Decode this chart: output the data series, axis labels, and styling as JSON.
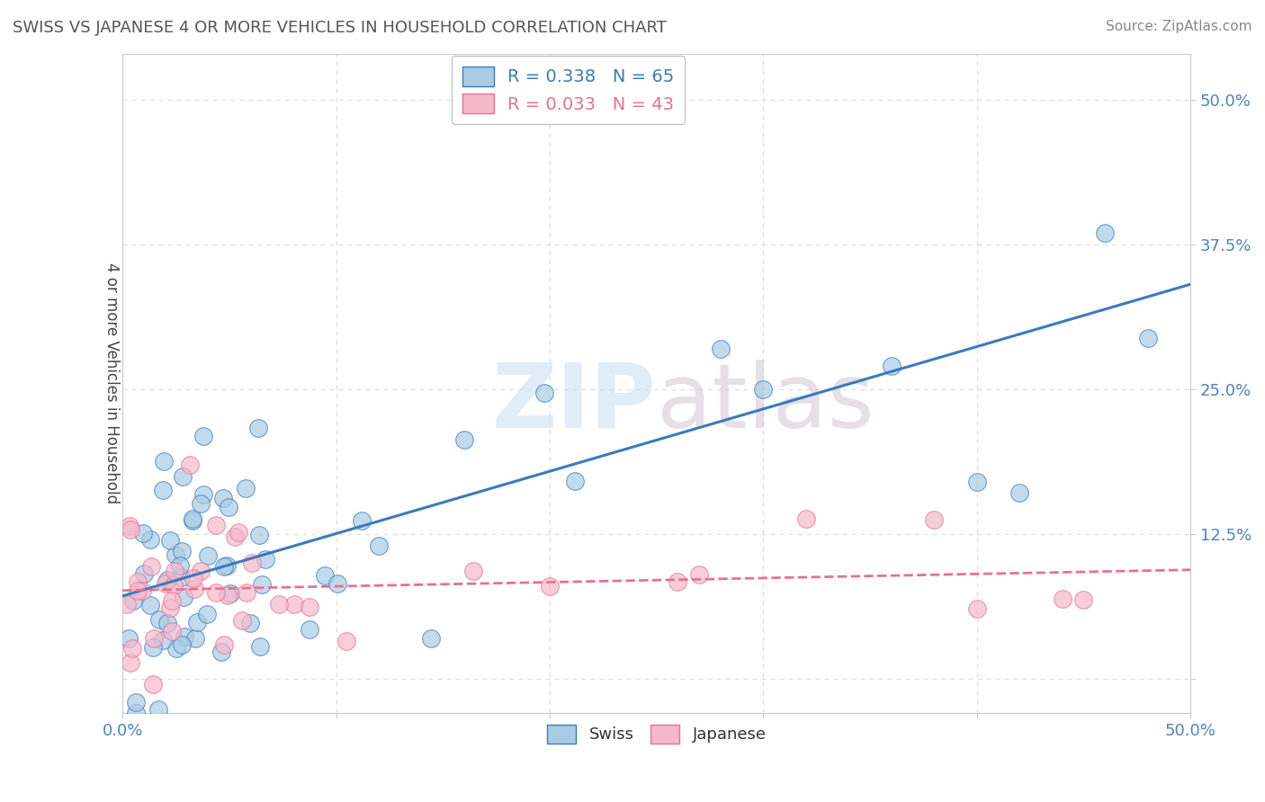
{
  "title": "SWISS VS JAPANESE 4 OR MORE VEHICLES IN HOUSEHOLD CORRELATION CHART",
  "source": "Source: ZipAtlas.com",
  "ylabel": "4 or more Vehicles in Household",
  "xlim": [
    0.0,
    0.5
  ],
  "ylim": [
    -0.03,
    0.54
  ],
  "xticks": [
    0.0,
    0.1,
    0.2,
    0.3,
    0.4,
    0.5
  ],
  "xticklabels": [
    "0.0%",
    "",
    "",
    "",
    "",
    "50.0%"
  ],
  "yticks": [
    0.0,
    0.125,
    0.25,
    0.375,
    0.5
  ],
  "yticklabels": [
    "",
    "12.5%",
    "25.0%",
    "37.5%",
    "50.0%"
  ],
  "swiss_scatter_color": "#a8cce4",
  "japanese_scatter_color": "#f4b8cb",
  "swiss_line_color": "#3a7abf",
  "japanese_line_color": "#e87090",
  "watermark_color": "#dce8f2",
  "background_color": "#ffffff",
  "grid_color": "#dddddd",
  "title_color": "#555555",
  "source_color": "#888888",
  "tick_color": "#5080c0",
  "swiss_R": 0.338,
  "swiss_N": 65,
  "japanese_R": 0.033,
  "japanese_N": 43
}
